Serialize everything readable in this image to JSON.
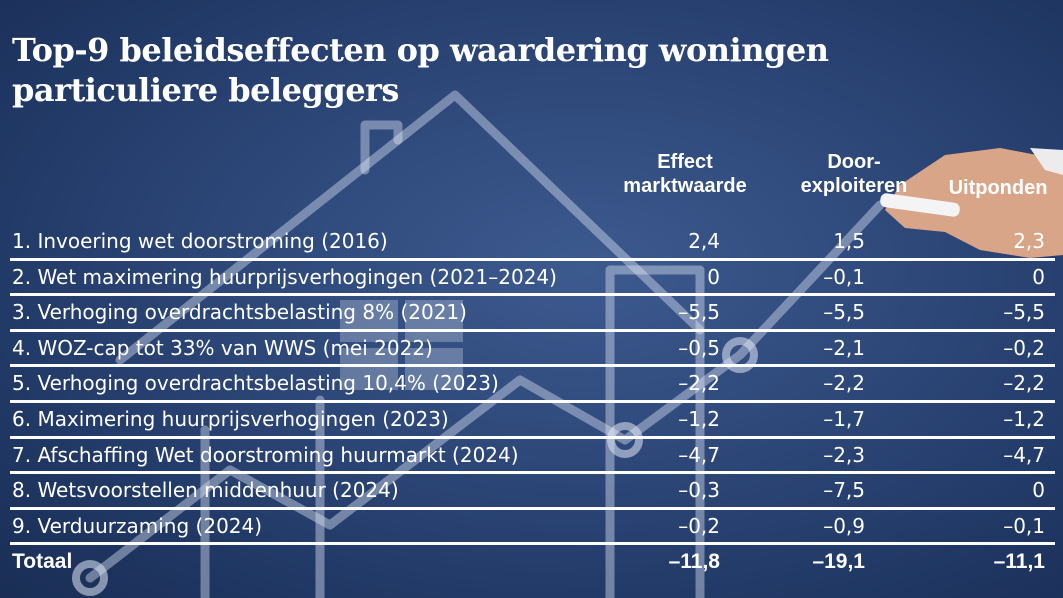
{
  "title_line1": "Top-9 beleidseffecten op waardering woningen",
  "title_line2": "particuliere beleggers",
  "columns": {
    "effect_l1": "Effect",
    "effect_l2": "marktwaarde",
    "door_l1": "Door-",
    "door_l2": "exploiteren",
    "uit": "Uitponden"
  },
  "rows": [
    {
      "label": "1. Invoering wet doorstroming (2016)",
      "effect": "2,4",
      "door": "1,5",
      "uit": "2,3"
    },
    {
      "label": "2. Wet maximering huurprijsverhogingen (2021–2024)",
      "effect": "0",
      "door": "–0,1",
      "uit": "0"
    },
    {
      "label": "3. Verhoging overdrachtsbelasting 8% (2021)",
      "effect": "–5,5",
      "door": "–5,5",
      "uit": "–5,5"
    },
    {
      "label": "4. WOZ-cap tot 33% van WWS (mei 2022)",
      "effect": "–0,5",
      "door": "–2,1",
      "uit": "–0,2"
    },
    {
      "label": "5. Verhoging overdrachtsbelasting 10,4% (2023)",
      "effect": "–2,2",
      "door": "–2,2",
      "uit": "–2,2"
    },
    {
      "label": "6. Maximering huurprijsverhogingen (2023)",
      "effect": "–1,2",
      "door": "–1,7",
      "uit": "–1,2"
    },
    {
      "label": "7. Afschaffing Wet doorstroming huurmarkt (2024)",
      "effect": "–4,7",
      "door": "–2,3",
      "uit": "–4,7"
    },
    {
      "label": "8. Wetsvoorstellen middenhuur (2024)",
      "effect": "–0,3",
      "door": "–7,5",
      "uit": "0"
    },
    {
      "label": "9. Verduurzaming (2024)",
      "effect": "–0,2",
      "door": "–0,9",
      "uit": "–0,1"
    }
  ],
  "total": {
    "label": "Totaal",
    "effect": "–11,8",
    "door": "–19,1",
    "uit": "–11,1"
  }
}
